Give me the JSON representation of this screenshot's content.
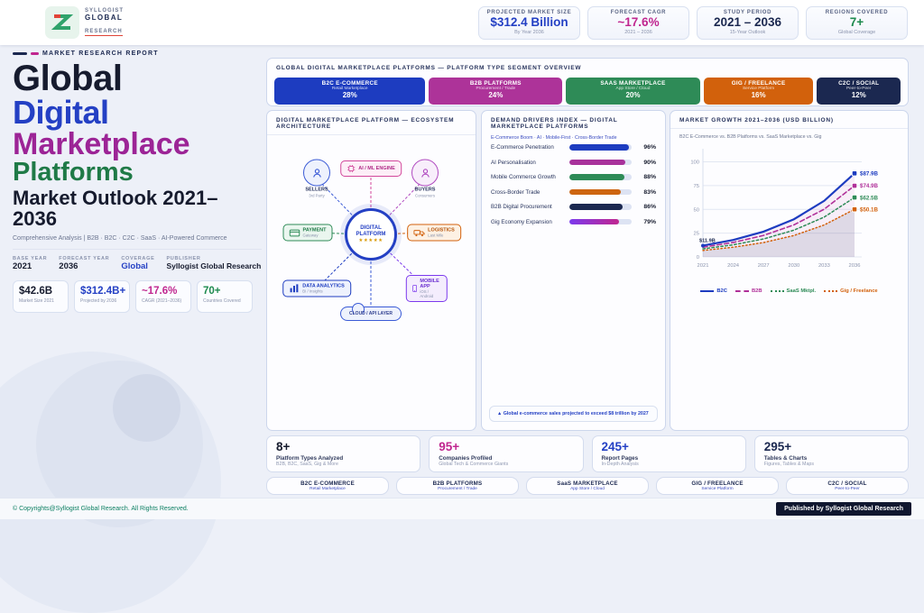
{
  "brand": {
    "line1": "SYLLOGIST",
    "line2": "GLOBAL",
    "line3": "RESEARCH"
  },
  "header_stats": [
    {
      "label": "PROJECTED MARKET SIZE",
      "value": "$312.4 Billion",
      "sub": "By Year 2036",
      "color": "#2440c4"
    },
    {
      "label": "FORECAST CAGR",
      "value": "~17.6%",
      "sub": "2021 – 2036",
      "color": "#c0268f"
    },
    {
      "label": "STUDY PERIOD",
      "value": "2021 – 2036",
      "sub": "15-Year Outlook",
      "color": "#1b2850"
    },
    {
      "label": "REGIONS COVERED",
      "value": "7+",
      "sub": "Global Coverage",
      "color": "#1d8a4e"
    }
  ],
  "hero": {
    "eyebrow": "MARKET RESEARCH REPORT",
    "title1": {
      "text": "Global",
      "color": "#161b2e"
    },
    "title2": {
      "text": "Digital",
      "color": "#2440c4"
    },
    "title3": {
      "text": "Marketplace",
      "color": "#9c2496"
    },
    "title4": {
      "text": "Platforms",
      "color": "#1f7a47"
    },
    "outlook": "Market Outlook 2021–2036",
    "subtitle": "Comprehensive Analysis  |  B2B · B2C · C2C · SaaS · AI-Powered Commerce",
    "meta": [
      {
        "label": "BASE YEAR",
        "value": "2021",
        "color": "#161b2e"
      },
      {
        "label": "FORECAST YEAR",
        "value": "2036",
        "color": "#161b2e"
      },
      {
        "label": "COVERAGE",
        "value": "Global",
        "color": "#2440c4"
      },
      {
        "label": "PUBLISHER",
        "value": "Syllogist Global Research",
        "color": "#161b2e"
      }
    ],
    "chips": [
      {
        "value": "$42.6B",
        "label": "Market Size 2021",
        "color": "#161b2e"
      },
      {
        "value": "$312.4B+",
        "label": "Projected by 2036",
        "color": "#2440c4"
      },
      {
        "value": "~17.6%",
        "label": "CAGR (2021–2036)",
        "color": "#c0268f"
      },
      {
        "value": "70+",
        "label": "Countries Covered",
        "color": "#1d8a4e"
      }
    ]
  },
  "segments": {
    "title": "GLOBAL DIGITAL MARKETPLACE PLATFORMS — PLATFORM TYPE SEGMENT OVERVIEW",
    "items": [
      {
        "name": "B2C E-COMMERCE",
        "sub": "Retail Marketplace",
        "pct": "28%",
        "value": 28,
        "color": "#1d3cc0"
      },
      {
        "name": "B2B PLATFORMS",
        "sub": "Procurement / Trade",
        "pct": "24%",
        "value": 24,
        "color": "#ad3399"
      },
      {
        "name": "SAAS MARKETPLACE",
        "sub": "App Store / Cloud",
        "pct": "20%",
        "value": 20,
        "color": "#2e8b57"
      },
      {
        "name": "GIG / FREELANCE",
        "sub": "Service Platform",
        "pct": "16%",
        "value": 16,
        "color": "#d2610c"
      },
      {
        "name": "C2C / SOCIAL",
        "sub": "Peer-to-Peer",
        "pct": "12%",
        "value": 12,
        "color": "#1b2850"
      }
    ]
  },
  "ecosystem": {
    "title": "DIGITAL MARKETPLACE PLATFORM — ECOSYSTEM ARCHITECTURE",
    "center": {
      "line1": "DIGITAL",
      "line2": "PLATFORM",
      "stars": "★★★★★"
    },
    "ai": {
      "name": "AI / ML ENGINE"
    },
    "sellers": {
      "name": "SELLERS",
      "sub": "3rd Party"
    },
    "buyers": {
      "name": "BUYERS",
      "sub": "Consumers"
    },
    "payment": {
      "name": "PAYMENT",
      "sub": "Gateway"
    },
    "logistics": {
      "name": "LOGISTICS",
      "sub": "Last Mile"
    },
    "data": {
      "name": "DATA ANALYTICS",
      "sub": "BI / Insights"
    },
    "mobile": {
      "name": "MOBILE APP",
      "sub": "iOS / Android"
    },
    "cloud": {
      "name": "CLOUD / API LAYER"
    }
  },
  "drivers": {
    "title": "DEMAND DRIVERS INDEX — DIGITAL MARKETPLACE PLATFORMS",
    "subtitle": "E-Commerce Boom · AI · Mobile-First · Cross-Border Trade",
    "note": "▲  Global e-commerce sales projected to exceed $8 trillion by 2027"
  },
  "growth": {
    "title": "MARKET GROWTH 2021–2036 (USD BILLION)",
    "subtitle": "B2C E-Commerce vs. B2B Platforms vs. SaaS Marketplace vs. Gig"
  },
  "chart_data": [
    {
      "type": "bar",
      "title": "Demand Drivers Index — Digital Marketplace Platforms",
      "orientation": "horizontal",
      "categories": [
        "E-Commerce Penetration",
        "AI Personalisation",
        "Mobile Commerce Growth",
        "Cross-Border Trade",
        "B2B Digital Procurement",
        "Gig Economy Expansion"
      ],
      "values": [
        96,
        90,
        88,
        83,
        86,
        79
      ],
      "pct_labels": [
        "96%",
        "90%",
        "88%",
        "83%",
        "86%",
        "79%"
      ],
      "colors": [
        "#1d3cc0",
        "#a8329b",
        "#2e8b57",
        "#cd6511",
        "#1b2850",
        "linear-gradient(90deg,#7c3aed,#c0268f)"
      ],
      "xlim": [
        0,
        100
      ]
    },
    {
      "type": "line",
      "title": "Market Growth 2021–2036 (USD Billion)",
      "x": [
        2021,
        2024,
        2027,
        2030,
        2033,
        2036
      ],
      "yticks": [
        0,
        25,
        50,
        75,
        100
      ],
      "ylim": [
        0,
        110
      ],
      "start_label": "$11.9B",
      "series": [
        {
          "name": "B2C",
          "values": [
            11.9,
            17.8,
            26.6,
            39.6,
            59.0,
            87.9
          ],
          "color": "#1d3cc0",
          "dash": "",
          "width": 2.2,
          "end_label": "$87.9B"
        },
        {
          "name": "B2B",
          "values": [
            10.2,
            15.2,
            22.6,
            33.7,
            50.2,
            74.9
          ],
          "color": "#b03099",
          "dash": "5 3",
          "width": 1.6,
          "end_label": "$74.9B"
        },
        {
          "name": "SaaS Mktpl.",
          "values": [
            8.5,
            12.7,
            18.9,
            28.1,
            41.9,
            62.5
          ],
          "color": "#2e8b57",
          "dash": "2.5 2.5",
          "width": 1.5,
          "end_label": "$62.5B"
        },
        {
          "name": "Gig / Freelance",
          "values": [
            6.8,
            10.2,
            15.1,
            22.5,
            33.6,
            50.1
          ],
          "color": "#d2610c",
          "dash": "1.4 2.6",
          "width": 1.5,
          "end_label": "$50.1B"
        }
      ],
      "legend_position": "bottom"
    }
  ],
  "bottom_stats": [
    {
      "value": "8+",
      "label": "Platform Types Analyzed",
      "sub": "B2B, B2C, SaaS, Gig & More",
      "color": "#161b2e"
    },
    {
      "value": "95+",
      "label": "Companies Profiled",
      "sub": "Global Tech & Commerce Giants",
      "color": "#c0268f"
    },
    {
      "value": "245+",
      "label": "Report Pages",
      "sub": "In-Depth Analysis",
      "color": "#2440c4"
    },
    {
      "value": "295+",
      "label": "Tables & Charts",
      "sub": "Figures, Tables & Maps",
      "color": "#1b2850"
    }
  ],
  "bottom_chips": [
    {
      "title": "B2C E-COMMERCE",
      "sub": "Retail Marketplace"
    },
    {
      "title": "B2B PLATFORMS",
      "sub": "Procurement / Trade"
    },
    {
      "title": "SaaS MARKETPLACE",
      "sub": "App Store / Cloud"
    },
    {
      "title": "GIG / FREELANCE",
      "sub": "Service Platform"
    },
    {
      "title": "C2C / SOCIAL",
      "sub": "Peer-to-Peer"
    }
  ],
  "footer": {
    "copyright": "© Copyrights@Syllogist Global Research. All Rights Reserved.",
    "published": "Published by Syllogist Global Research"
  }
}
